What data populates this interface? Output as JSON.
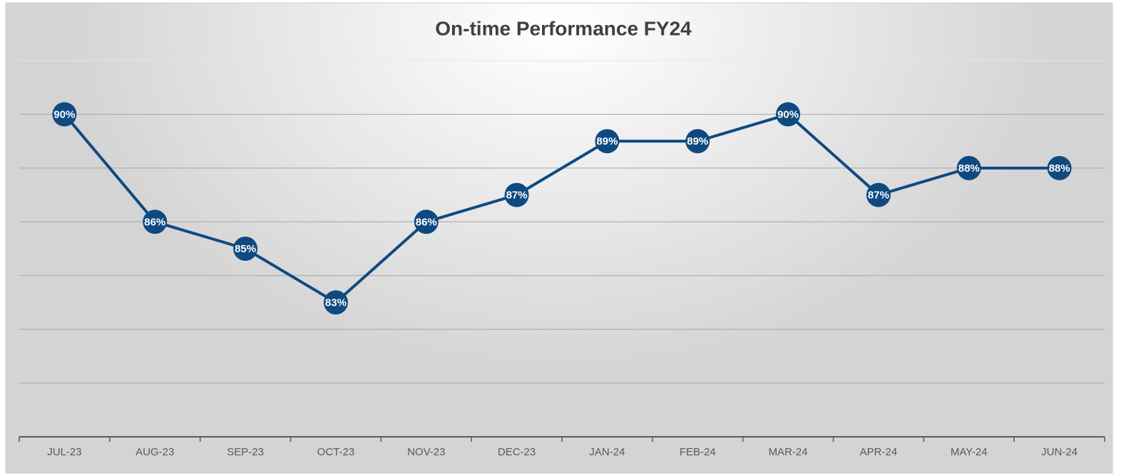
{
  "chart_data": {
    "type": "line",
    "title": "On-time Performance FY24",
    "categories": [
      "JUL-23",
      "AUG-23",
      "SEP-23",
      "OCT-23",
      "NOV-23",
      "DEC-23",
      "JAN-24",
      "FEB-24",
      "MAR-24",
      "APR-24",
      "MAY-24",
      "JUN-24"
    ],
    "series": [
      {
        "name": "On-time Performance",
        "color": "#0e4a80",
        "values": [
          90,
          86,
          85,
          83,
          86,
          87,
          89,
          89,
          90,
          87,
          88,
          88
        ],
        "value_labels": [
          "90%",
          "86%",
          "85%",
          "83%",
          "86%",
          "87%",
          "89%",
          "89%",
          "90%",
          "87%",
          "88%",
          "88%"
        ]
      }
    ],
    "ylim": [
      78,
      92
    ],
    "yticks": [
      78,
      80,
      82,
      84,
      86,
      88,
      90,
      92
    ],
    "grid": true
  }
}
